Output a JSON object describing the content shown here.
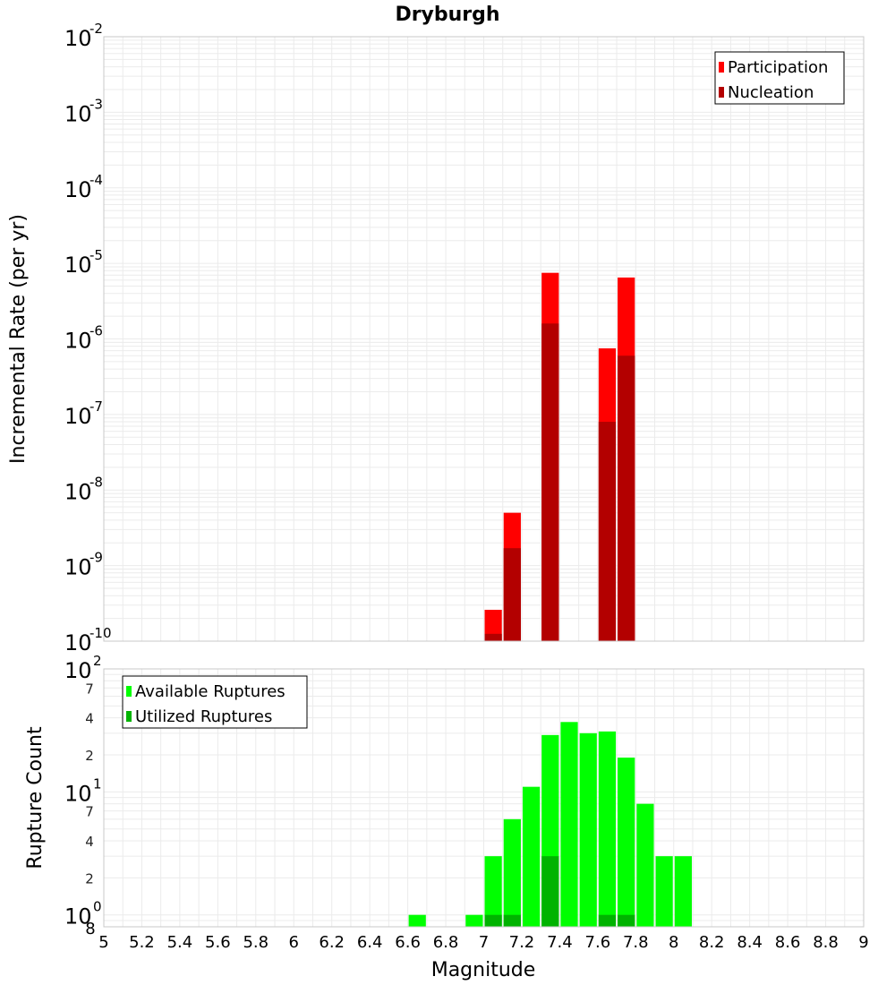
{
  "title": "Dryburgh",
  "chart_data": [
    {
      "type": "bar",
      "name": "incremental-rate",
      "ylabel": "Incremental Rate (per yr)",
      "yscale": "log",
      "ylim": [
        1e-10,
        0.01
      ],
      "y_ticks": [
        {
          "base": "10",
          "exp": "-10"
        },
        {
          "base": "10",
          "exp": "-9"
        },
        {
          "base": "10",
          "exp": "-8"
        },
        {
          "base": "10",
          "exp": "-7"
        },
        {
          "base": "10",
          "exp": "-6"
        },
        {
          "base": "10",
          "exp": "-5"
        },
        {
          "base": "10",
          "exp": "-4"
        },
        {
          "base": "10",
          "exp": "-3"
        },
        {
          "base": "10",
          "exp": "-2"
        }
      ],
      "legend_position": "top-right",
      "grid": true,
      "bar_width": 0.1,
      "series": [
        {
          "name": "Participation",
          "color": "#ff0000",
          "x": [
            7.05,
            7.15,
            7.35,
            7.65,
            7.75
          ],
          "values": [
            2.6e-10,
            5e-09,
            7.5e-06,
            7.5e-07,
            6.5e-06
          ]
        },
        {
          "name": "Nucleation",
          "color": "#b30000",
          "x": [
            7.05,
            7.15,
            7.35,
            7.65,
            7.75
          ],
          "values": [
            1.25e-10,
            1.7e-09,
            1.6e-06,
            8e-08,
            6e-07
          ]
        }
      ]
    },
    {
      "type": "bar",
      "name": "rupture-count",
      "ylabel": "Rupture Count",
      "xlabel": "Magnitude",
      "yscale": "log",
      "ylim": [
        0.8,
        100
      ],
      "xlim": [
        5,
        9
      ],
      "x_ticks": [
        "5",
        "5.2",
        "5.4",
        "5.6",
        "5.8",
        "6",
        "6.2",
        "6.4",
        "6.6",
        "6.8",
        "7",
        "7.2",
        "7.4",
        "7.6",
        "7.8",
        "8",
        "8.2",
        "8.4",
        "8.6",
        "8.8",
        "9"
      ],
      "y_major_ticks": [
        {
          "value": 1,
          "base": "10",
          "exp": "0"
        },
        {
          "value": 10,
          "base": "10",
          "exp": "1"
        },
        {
          "value": 100,
          "base": "10",
          "exp": "2"
        }
      ],
      "y_minor_ticks": [
        {
          "value": 0.8,
          "label": "8"
        },
        {
          "value": 2,
          "label": "2"
        },
        {
          "value": 4,
          "label": "4"
        },
        {
          "value": 7,
          "label": "7"
        },
        {
          "value": 20,
          "label": "2"
        },
        {
          "value": 40,
          "label": "4"
        },
        {
          "value": 70,
          "label": "7"
        }
      ],
      "legend_position": "top-left",
      "grid": true,
      "bar_width": 0.1,
      "series": [
        {
          "name": "Available Ruptures",
          "color": "#00ff00",
          "x": [
            6.65,
            6.95,
            7.05,
            7.15,
            7.25,
            7.35,
            7.45,
            7.55,
            7.65,
            7.75,
            7.85,
            7.95,
            8.05
          ],
          "values": [
            1,
            1,
            3,
            6,
            11,
            29,
            37,
            30,
            31,
            19,
            8,
            3,
            3
          ]
        },
        {
          "name": "Utilized Ruptures",
          "color": "#00b300",
          "x": [
            7.05,
            7.15,
            7.35,
            7.65,
            7.75
          ],
          "values": [
            1,
            1,
            3,
            1,
            1
          ]
        }
      ]
    }
  ]
}
